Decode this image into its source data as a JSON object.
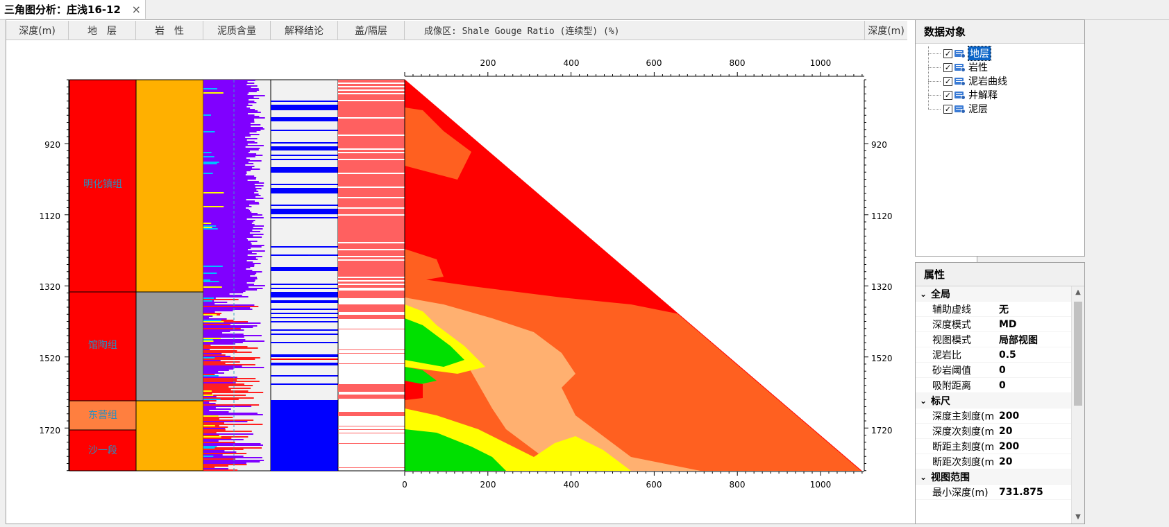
{
  "tab": {
    "title": "三角图分析：庄浅16-12",
    "close": "×"
  },
  "headers": {
    "depth_left": "深度(m)",
    "formation": "地　层",
    "lithology": "岩　性",
    "shale_content": "泥质含量",
    "interpretation": "解释结论",
    "cap_barrier": "盖/隔层",
    "imaging_area": "成像区: Shale Gouge Ratio (连续型) (%)",
    "depth_right": "深度(m)"
  },
  "depth_ticks": [
    "920",
    "1120",
    "1320",
    "1520",
    "1720"
  ],
  "distance_ticks_top": [
    "200",
    "400",
    "600",
    "800",
    "1000"
  ],
  "distance_ticks_bottom": [
    "0",
    "200",
    "400",
    "600",
    "800",
    "1000"
  ],
  "formations": [
    "明化镇组",
    "馆陶组",
    "东营组",
    "沙一段"
  ],
  "colors": {
    "formation_fill": "#ff0000",
    "dongying_fill": "#ff7f3f",
    "lithology_sand": "#ffb000",
    "lithology_shale": "#999999",
    "shale_curve": "#8000ff",
    "interp_blue": "#0000ff",
    "cap_pink": "#ff6060",
    "sgr_red": "#ff0000",
    "sgr_orange": "#ff6020",
    "sgr_peach": "#ffb070",
    "sgr_yellow": "#ffff00",
    "sgr_green": "#00e000"
  },
  "data_objects": {
    "title": "数据对象",
    "items": [
      "地层",
      "岩性",
      "泥岩曲线",
      "井解释",
      "泥层"
    ]
  },
  "properties": {
    "title": "属性",
    "groups": [
      {
        "name": "全局",
        "rows": [
          [
            "辅助虚线",
            "无"
          ],
          [
            "深度模式",
            "MD"
          ],
          [
            "视图模式",
            "局部视图"
          ],
          [
            "泥岩比",
            "0.5"
          ],
          [
            "砂岩阈值",
            "0"
          ],
          [
            "吸附距离",
            "0"
          ]
        ]
      },
      {
        "name": "标尺",
        "rows": [
          [
            "深度主刻度(m",
            "200"
          ],
          [
            "深度次刻度(m",
            "20"
          ],
          [
            "断距主刻度(m",
            "200"
          ],
          [
            "断距次刻度(m",
            "20"
          ]
        ]
      },
      {
        "name": "视图范围",
        "rows": [
          [
            "最小深度(m)",
            "731.875"
          ]
        ]
      }
    ]
  }
}
